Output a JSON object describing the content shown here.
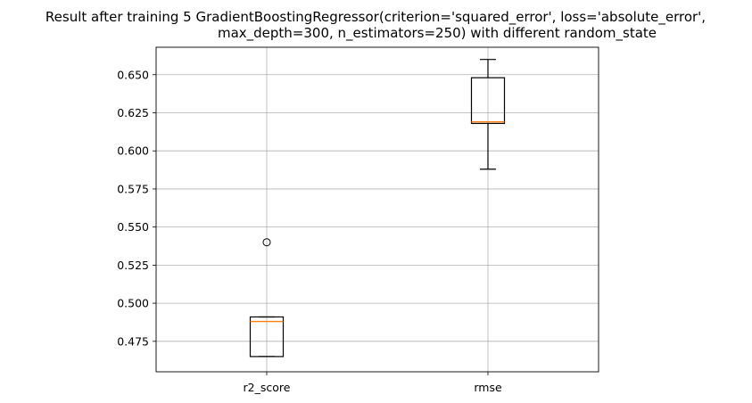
{
  "chart_data": {
    "type": "boxplot",
    "title_lines": [
      "Result after training 5 GradientBoostingRegressor(criterion='squared_error', loss='absolute_error',",
      "max_depth=300, n_estimators=250) with different random_state"
    ],
    "categories": [
      "r2_score",
      "rmse"
    ],
    "ylim": [
      0.455,
      0.668
    ],
    "yticks": [
      "0.475",
      "0.500",
      "0.525",
      "0.550",
      "0.575",
      "0.600",
      "0.625",
      "0.650"
    ],
    "grid": true,
    "boxes": [
      {
        "name": "r2_score",
        "whislo": 0.465,
        "q1": 0.465,
        "med": 0.488,
        "q3": 0.491,
        "whishi": 0.491,
        "fliers": [
          0.54
        ]
      },
      {
        "name": "rmse",
        "whislo": 0.588,
        "q1": 0.618,
        "med": 0.619,
        "q3": 0.648,
        "whishi": 0.66,
        "fliers": []
      }
    ],
    "colors": {
      "box": "#000000",
      "median": "#ff7f0e",
      "grid": "#b0b0b0"
    }
  }
}
